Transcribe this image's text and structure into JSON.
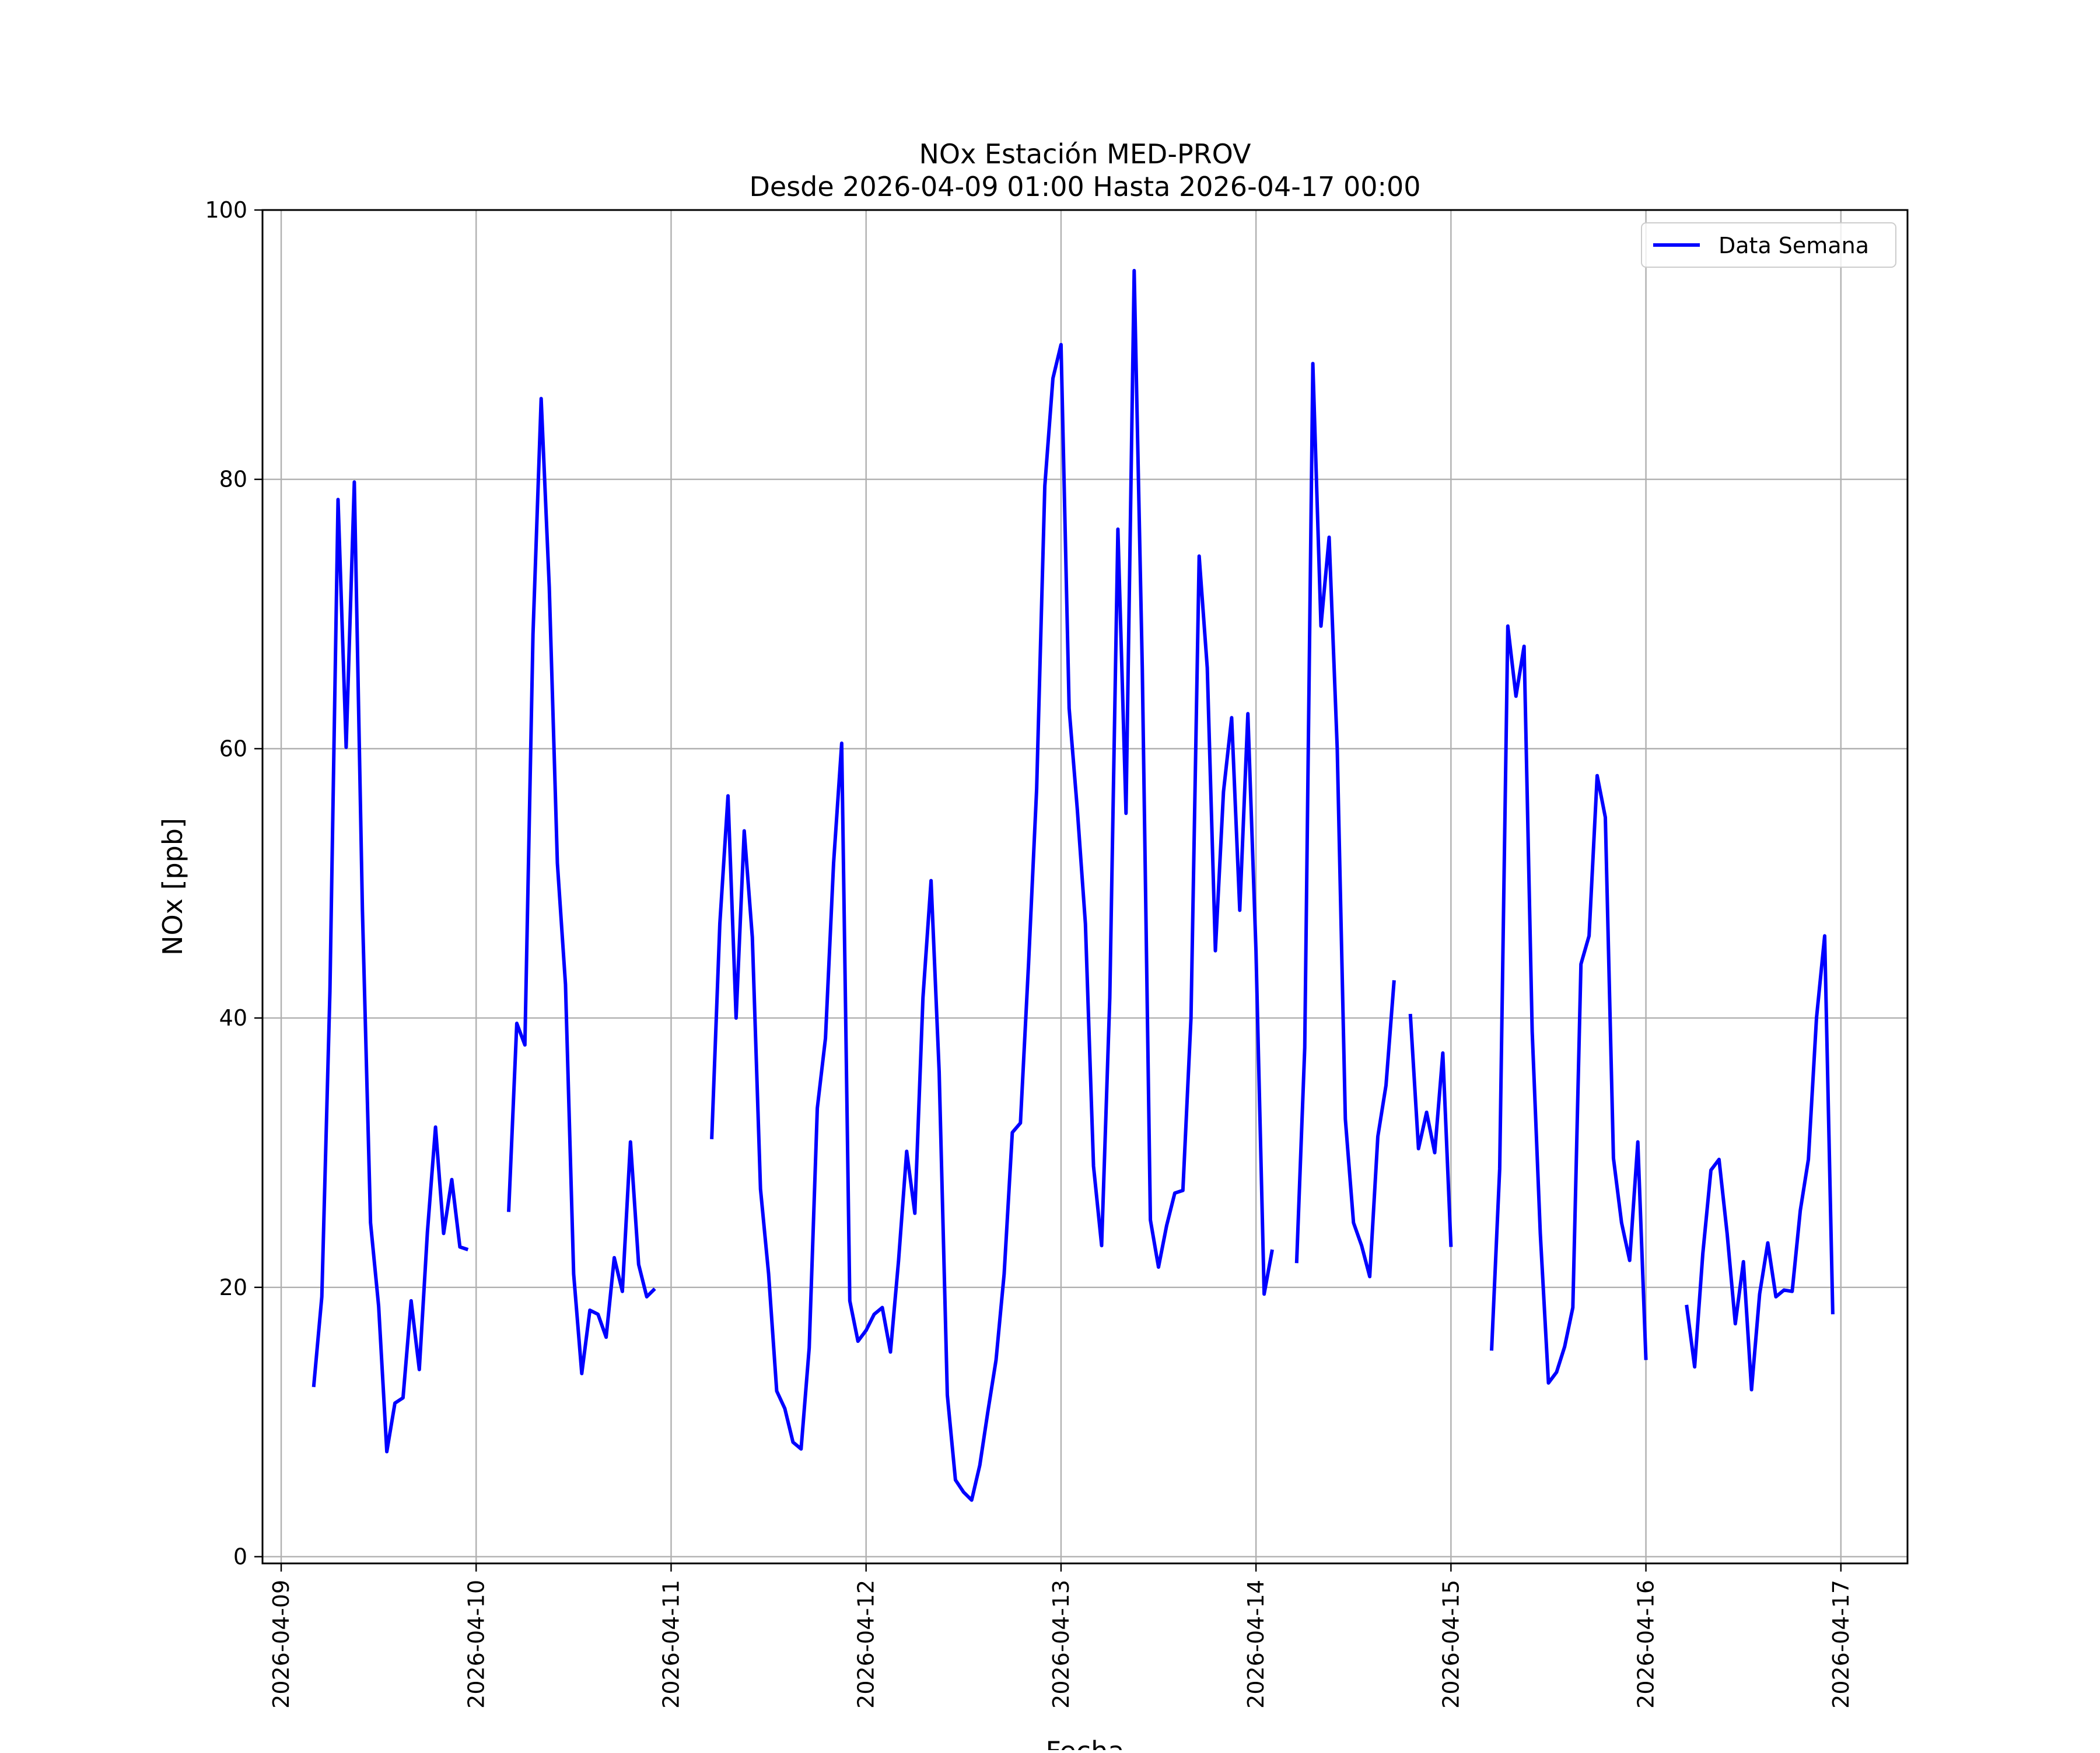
{
  "chart_data": {
    "type": "line",
    "title": "NOx Estación MED-PROV",
    "subtitle": "Desde 2026-04-09 01:00 Hasta 2026-04-17 00:00",
    "xlabel": "Fecha",
    "ylabel": "NOx [ppb]",
    "xlim": [
      "2026-04-08 21:42",
      "2026-04-17 08:12"
    ],
    "ylim": [
      -0.5,
      100
    ],
    "x_ticks": [
      "2026-04-09",
      "2026-04-10",
      "2026-04-11",
      "2026-04-12",
      "2026-04-13",
      "2026-04-14",
      "2026-04-15",
      "2026-04-16",
      "2026-04-17"
    ],
    "y_ticks": [
      0,
      20,
      40,
      60,
      80,
      100
    ],
    "grid": true,
    "legend": {
      "position": "top-right",
      "entries": [
        "Data Semana"
      ]
    },
    "series": [
      {
        "name": "Data Semana",
        "color": "#0000ff",
        "points": [
          [
            "2026-04-09 04:00",
            12.6
          ],
          [
            "2026-04-09 05:00",
            19.3
          ],
          [
            "2026-04-09 06:00",
            42.0
          ],
          [
            "2026-04-09 07:00",
            78.5
          ],
          [
            "2026-04-09 08:00",
            60.1
          ],
          [
            "2026-04-09 09:00",
            79.8
          ],
          [
            "2026-04-09 10:00",
            48.0
          ],
          [
            "2026-04-09 11:00",
            24.8
          ],
          [
            "2026-04-09 12:00",
            18.6
          ],
          [
            "2026-04-09 13:00",
            7.8
          ],
          [
            "2026-04-09 14:00",
            11.4
          ],
          [
            "2026-04-09 15:00",
            11.8
          ],
          [
            "2026-04-09 16:00",
            19.0
          ],
          [
            "2026-04-09 17:00",
            13.9
          ],
          [
            "2026-04-09 18:00",
            24.1
          ],
          [
            "2026-04-09 19:00",
            31.9
          ],
          [
            "2026-04-09 20:00",
            24.0
          ],
          [
            "2026-04-09 21:00",
            28.0
          ],
          [
            "2026-04-09 22:00",
            23.0
          ],
          [
            "2026-04-09 23:00",
            22.8
          ],
          null,
          [
            "2026-04-10 04:00",
            25.6
          ],
          [
            "2026-04-10 05:00",
            39.6
          ],
          [
            "2026-04-10 06:00",
            38.0
          ],
          [
            "2026-04-10 07:00",
            68.5
          ],
          [
            "2026-04-10 08:00",
            86.0
          ],
          [
            "2026-04-10 09:00",
            72.0
          ],
          [
            "2026-04-10 10:00",
            51.5
          ],
          [
            "2026-04-10 11:00",
            42.5
          ],
          [
            "2026-04-10 12:00",
            21.0
          ],
          [
            "2026-04-10 13:00",
            13.6
          ],
          [
            "2026-04-10 14:00",
            18.3
          ],
          [
            "2026-04-10 15:00",
            18.0
          ],
          [
            "2026-04-10 16:00",
            16.3
          ],
          [
            "2026-04-10 17:00",
            22.2
          ],
          [
            "2026-04-10 18:00",
            19.7
          ],
          [
            "2026-04-10 19:00",
            30.8
          ],
          [
            "2026-04-10 20:00",
            21.7
          ],
          [
            "2026-04-10 21:00",
            19.3
          ],
          [
            "2026-04-10 22:00",
            19.9
          ],
          null,
          [
            "2026-04-11 05:00",
            31.0
          ],
          [
            "2026-04-11 06:00",
            47.0
          ],
          [
            "2026-04-11 07:00",
            56.5
          ],
          [
            "2026-04-11 08:00",
            40.0
          ],
          [
            "2026-04-11 09:00",
            53.9
          ],
          [
            "2026-04-11 10:00",
            46.0
          ],
          [
            "2026-04-11 11:00",
            27.3
          ],
          [
            "2026-04-11 12:00",
            21.0
          ],
          [
            "2026-04-11 13:00",
            12.3
          ],
          [
            "2026-04-11 14:00",
            11.0
          ],
          [
            "2026-04-11 15:00",
            8.5
          ],
          [
            "2026-04-11 16:00",
            8.0
          ],
          [
            "2026-04-11 17:00",
            15.5
          ],
          [
            "2026-04-11 18:00",
            33.3
          ],
          [
            "2026-04-11 19:00",
            38.5
          ],
          [
            "2026-04-11 20:00",
            51.5
          ],
          [
            "2026-04-11 21:00",
            60.4
          ],
          [
            "2026-04-11 22:00",
            19.0
          ],
          [
            "2026-04-11 23:00",
            16.0
          ],
          [
            "2026-04-12 00:00",
            16.8
          ],
          [
            "2026-04-12 01:00",
            18.0
          ],
          [
            "2026-04-12 02:00",
            18.5
          ],
          [
            "2026-04-12 03:00",
            15.2
          ],
          [
            "2026-04-12 04:00",
            22.0
          ],
          [
            "2026-04-12 05:00",
            30.1
          ],
          [
            "2026-04-12 06:00",
            25.5
          ],
          [
            "2026-04-12 07:00",
            41.5
          ],
          [
            "2026-04-12 08:00",
            50.2
          ],
          [
            "2026-04-12 09:00",
            36.0
          ],
          [
            "2026-04-12 10:00",
            12.0
          ],
          [
            "2026-04-12 11:00",
            5.7
          ],
          [
            "2026-04-12 12:00",
            4.8
          ],
          [
            "2026-04-12 13:00",
            4.2
          ],
          [
            "2026-04-12 14:00",
            6.8
          ],
          [
            "2026-04-12 15:00",
            10.8
          ],
          [
            "2026-04-12 16:00",
            14.6
          ],
          [
            "2026-04-12 17:00",
            21.0
          ],
          [
            "2026-04-12 18:00",
            31.5
          ],
          [
            "2026-04-12 19:00",
            32.2
          ],
          [
            "2026-04-12 20:00",
            44.0
          ],
          [
            "2026-04-12 21:00",
            57.0
          ],
          [
            "2026-04-12 22:00",
            79.5
          ],
          [
            "2026-04-12 23:00",
            87.5
          ],
          [
            "2026-04-13 00:00",
            90.0
          ],
          [
            "2026-04-13 01:00",
            63.0
          ],
          [
            "2026-04-13 02:00",
            55.5
          ],
          [
            "2026-04-13 03:00",
            47.0
          ],
          [
            "2026-04-13 04:00",
            29.0
          ],
          [
            "2026-04-13 05:00",
            23.1
          ],
          [
            "2026-04-13 06:00",
            41.5
          ],
          [
            "2026-04-13 07:00",
            76.3
          ],
          [
            "2026-04-13 08:00",
            55.2
          ],
          [
            "2026-04-13 09:00",
            95.5
          ],
          [
            "2026-04-13 10:00",
            66.0
          ],
          [
            "2026-04-13 11:00",
            25.0
          ],
          [
            "2026-04-13 12:00",
            21.5
          ],
          [
            "2026-04-13 13:00",
            24.6
          ],
          [
            "2026-04-13 14:00",
            27.0
          ],
          [
            "2026-04-13 15:00",
            27.2
          ],
          [
            "2026-04-13 16:00",
            40.0
          ],
          [
            "2026-04-13 17:00",
            74.3
          ],
          [
            "2026-04-13 18:00",
            66.0
          ],
          [
            "2026-04-13 19:00",
            45.0
          ],
          [
            "2026-04-13 20:00",
            56.8
          ],
          [
            "2026-04-13 21:00",
            62.3
          ],
          [
            "2026-04-13 22:00",
            48.0
          ],
          [
            "2026-04-13 23:00",
            62.6
          ],
          [
            "2026-04-14 00:00",
            45.0
          ],
          [
            "2026-04-14 01:00",
            19.5
          ],
          [
            "2026-04-14 02:00",
            22.8
          ],
          null,
          [
            "2026-04-14 05:00",
            21.8
          ],
          [
            "2026-04-14 06:00",
            37.8
          ],
          [
            "2026-04-14 07:00",
            88.6
          ],
          [
            "2026-04-14 08:00",
            69.1
          ],
          [
            "2026-04-14 09:00",
            75.7
          ],
          [
            "2026-04-14 10:00",
            60.0
          ],
          [
            "2026-04-14 11:00",
            32.5
          ],
          [
            "2026-04-14 12:00",
            24.8
          ],
          [
            "2026-04-14 13:00",
            23.1
          ],
          [
            "2026-04-14 14:00",
            20.8
          ],
          [
            "2026-04-14 15:00",
            31.2
          ],
          [
            "2026-04-14 16:00",
            35.0
          ],
          [
            "2026-04-14 17:00",
            42.8
          ],
          null,
          [
            "2026-04-14 19:00",
            40.3
          ],
          [
            "2026-04-14 20:00",
            30.3
          ],
          [
            "2026-04-14 21:00",
            33.0
          ],
          [
            "2026-04-14 22:00",
            30.0
          ],
          [
            "2026-04-14 23:00",
            37.4
          ],
          [
            "2026-04-15 00:00",
            23.0
          ],
          null,
          [
            "2026-04-15 05:00",
            15.3
          ],
          [
            "2026-04-15 06:00",
            28.8
          ],
          [
            "2026-04-15 07:00",
            69.1
          ],
          [
            "2026-04-15 08:00",
            63.9
          ],
          [
            "2026-04-15 09:00",
            67.6
          ],
          [
            "2026-04-15 10:00",
            39.0
          ],
          [
            "2026-04-15 11:00",
            24.0
          ],
          [
            "2026-04-15 12:00",
            12.9
          ],
          [
            "2026-04-15 13:00",
            13.7
          ],
          [
            "2026-04-15 14:00",
            15.6
          ],
          [
            "2026-04-15 15:00",
            18.5
          ],
          [
            "2026-04-15 16:00",
            44.0
          ],
          [
            "2026-04-15 17:00",
            46.1
          ],
          [
            "2026-04-15 18:00",
            58.0
          ],
          [
            "2026-04-15 19:00",
            54.9
          ],
          [
            "2026-04-15 20:00",
            29.6
          ],
          [
            "2026-04-15 21:00",
            24.8
          ],
          [
            "2026-04-15 22:00",
            22.0
          ],
          [
            "2026-04-15 23:00",
            30.8
          ],
          [
            "2026-04-16 00:00",
            14.6
          ],
          null,
          [
            "2026-04-16 05:00",
            18.7
          ],
          [
            "2026-04-16 06:00",
            14.1
          ],
          [
            "2026-04-16 07:00",
            22.5
          ],
          [
            "2026-04-16 08:00",
            28.7
          ],
          [
            "2026-04-16 09:00",
            29.5
          ],
          [
            "2026-04-16 10:00",
            24.0
          ],
          [
            "2026-04-16 11:00",
            17.3
          ],
          [
            "2026-04-16 12:00",
            21.9
          ],
          [
            "2026-04-16 13:00",
            12.4
          ],
          [
            "2026-04-16 14:00",
            19.5
          ],
          [
            "2026-04-16 15:00",
            23.3
          ],
          [
            "2026-04-16 16:00",
            19.3
          ],
          [
            "2026-04-16 17:00",
            19.8
          ],
          [
            "2026-04-16 18:00",
            19.7
          ],
          [
            "2026-04-16 19:00",
            25.7
          ],
          [
            "2026-04-16 20:00",
            29.5
          ],
          [
            "2026-04-16 21:00",
            40.0
          ],
          [
            "2026-04-16 22:00",
            46.1
          ],
          [
            "2026-04-16 23:00",
            18.0
          ]
        ]
      }
    ]
  }
}
